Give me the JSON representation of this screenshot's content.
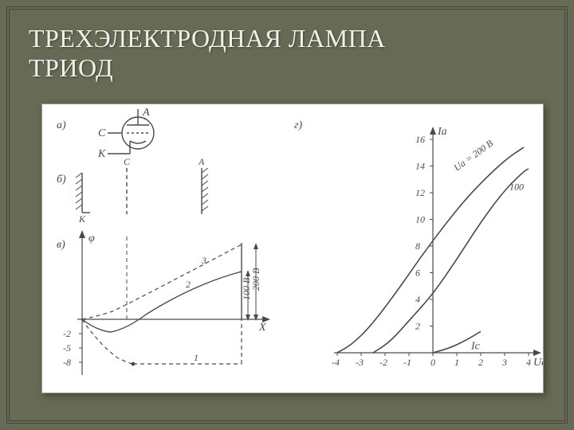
{
  "title_line1": "ТРЕХЭЛЕКТРОДНАЯ ЛАМПА",
  "title_line2": "ТРИОД",
  "background_color": "#676a55",
  "figure_bg": "#ffffff",
  "stroke_color": "#4a4a48",
  "panel_labels": {
    "a": "а)",
    "b": "б)",
    "v": "в)",
    "g": "г)"
  },
  "schematic": {
    "A": "A",
    "C": "C",
    "K": "К"
  },
  "field_diagram": {
    "C": "C",
    "A": "A",
    "K": "К"
  },
  "potential_chart": {
    "ylabel": "φ",
    "xlabel": "X",
    "curve_labels": [
      "1",
      "2",
      "3"
    ],
    "yneg_ticks": [
      "-2",
      "-5",
      "-8"
    ],
    "right_labels": [
      "100 В",
      "200 В"
    ]
  },
  "iv_chart": {
    "type": "line",
    "ylabel": "Iа",
    "xlabel": "Uc",
    "ic_label": "Ic",
    "series_labels": [
      "Uа = 200 В",
      "100"
    ],
    "xlim": [
      -4,
      4
    ],
    "ylim": [
      0,
      16
    ],
    "xtick_step": 1,
    "ytick_step": 2,
    "xticks": [
      "-4",
      "-3",
      "-2",
      "-1",
      "0",
      "1",
      "2",
      "3",
      "4"
    ],
    "yticks": [
      "2",
      "4",
      "6",
      "8",
      "10",
      "12",
      "14",
      "16"
    ],
    "series": [
      {
        "name": "Ua=200",
        "points": [
          [
            -4,
            0
          ],
          [
            -3.4,
            0.6
          ],
          [
            -2.6,
            2.0
          ],
          [
            -1.5,
            4.6
          ],
          [
            -0.5,
            7.2
          ],
          [
            0.5,
            9.6
          ],
          [
            1.5,
            11.8
          ],
          [
            2.5,
            13.6
          ],
          [
            3.2,
            14.7
          ],
          [
            3.8,
            15.4
          ]
        ]
      },
      {
        "name": "100",
        "points": [
          [
            -2.5,
            0
          ],
          [
            -1.8,
            0.8
          ],
          [
            -1,
            2.4
          ],
          [
            0,
            4.4
          ],
          [
            1,
            7.0
          ],
          [
            2,
            9.8
          ],
          [
            3,
            12.2
          ],
          [
            3.8,
            13.6
          ],
          [
            4,
            13.8
          ]
        ]
      },
      {
        "name": "Ic",
        "points": [
          [
            0,
            0
          ],
          [
            0.7,
            0.35
          ],
          [
            1.4,
            0.95
          ],
          [
            2,
            1.6
          ]
        ]
      }
    ],
    "colors": {
      "axis": "#4a4a48",
      "curve": "#4a4a48"
    }
  }
}
